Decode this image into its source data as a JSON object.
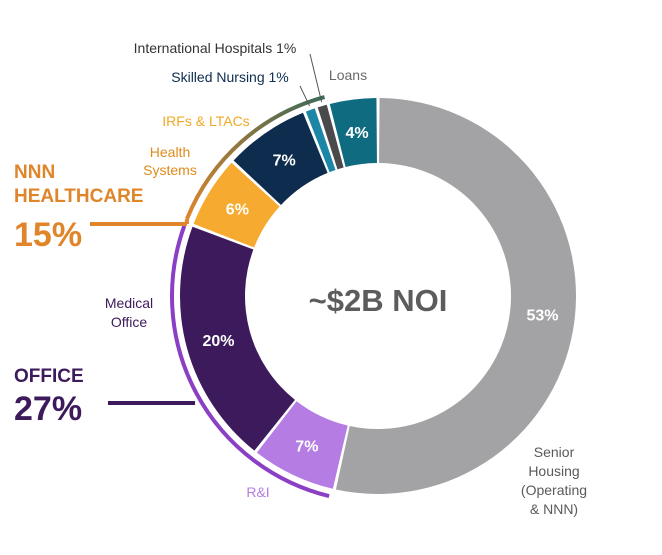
{
  "chart_data": {
    "type": "pie",
    "center_label": "~$2B NOI",
    "slices": [
      {
        "label": "Senior Housing (Operating & NNN)",
        "label_lines": [
          "Senior",
          "Housing",
          "(Operating",
          "& NNN)"
        ],
        "value": 53,
        "value_label": "53%",
        "color": "#a3a3a6",
        "label_color": "#5a5a5a"
      },
      {
        "label": "R&I",
        "label_lines": [
          "R&I"
        ],
        "value": 7,
        "value_label": "7%",
        "color": "#b57ce4",
        "label_color": "#b57ce4"
      },
      {
        "label": "Medical Office",
        "label_lines": [
          "Medical",
          "Office"
        ],
        "value": 20,
        "value_label": "20%",
        "color": "#3c1a5c",
        "label_color": "#3c1a5c"
      },
      {
        "label": "Health Systems",
        "label_lines": [
          "Health",
          "Systems"
        ],
        "value": 6,
        "value_label": "6%",
        "color": "#f6ab30",
        "label_color": "#e08a1c"
      },
      {
        "label": "IRFs & LTACs",
        "label_lines": [
          "IRFs & LTACs"
        ],
        "value": 7,
        "value_label": "7%",
        "color": "#0e2c4e",
        "label_color": "#f2a823"
      },
      {
        "label": "Skilled Nursing",
        "label_lines": [
          "Skilled Nursing 1%"
        ],
        "value": 1,
        "value_label": "",
        "color": "#1b86a6",
        "label_color": "#0e2c4e"
      },
      {
        "label": "International Hospitals",
        "label_lines": [
          "International Hospitals 1%"
        ],
        "value": 1,
        "value_label": "",
        "color": "#4a4a4c",
        "label_color": "#333333"
      },
      {
        "label": "Loans",
        "label_lines": [
          "Loans"
        ],
        "value": 4,
        "value_label": "4%",
        "color": "#0e6b80",
        "label_color": "#6a6a6a"
      }
    ],
    "groups": [
      {
        "title": "NNN HEALTHCARE",
        "title_lines": [
          "NNN",
          "HEALTHCARE"
        ],
        "value_label": "15%",
        "color": "#e0852a"
      },
      {
        "title": "OFFICE",
        "title_lines": [
          "OFFICE"
        ],
        "value_label": "27%",
        "color": "#3c1a5c"
      }
    ]
  }
}
